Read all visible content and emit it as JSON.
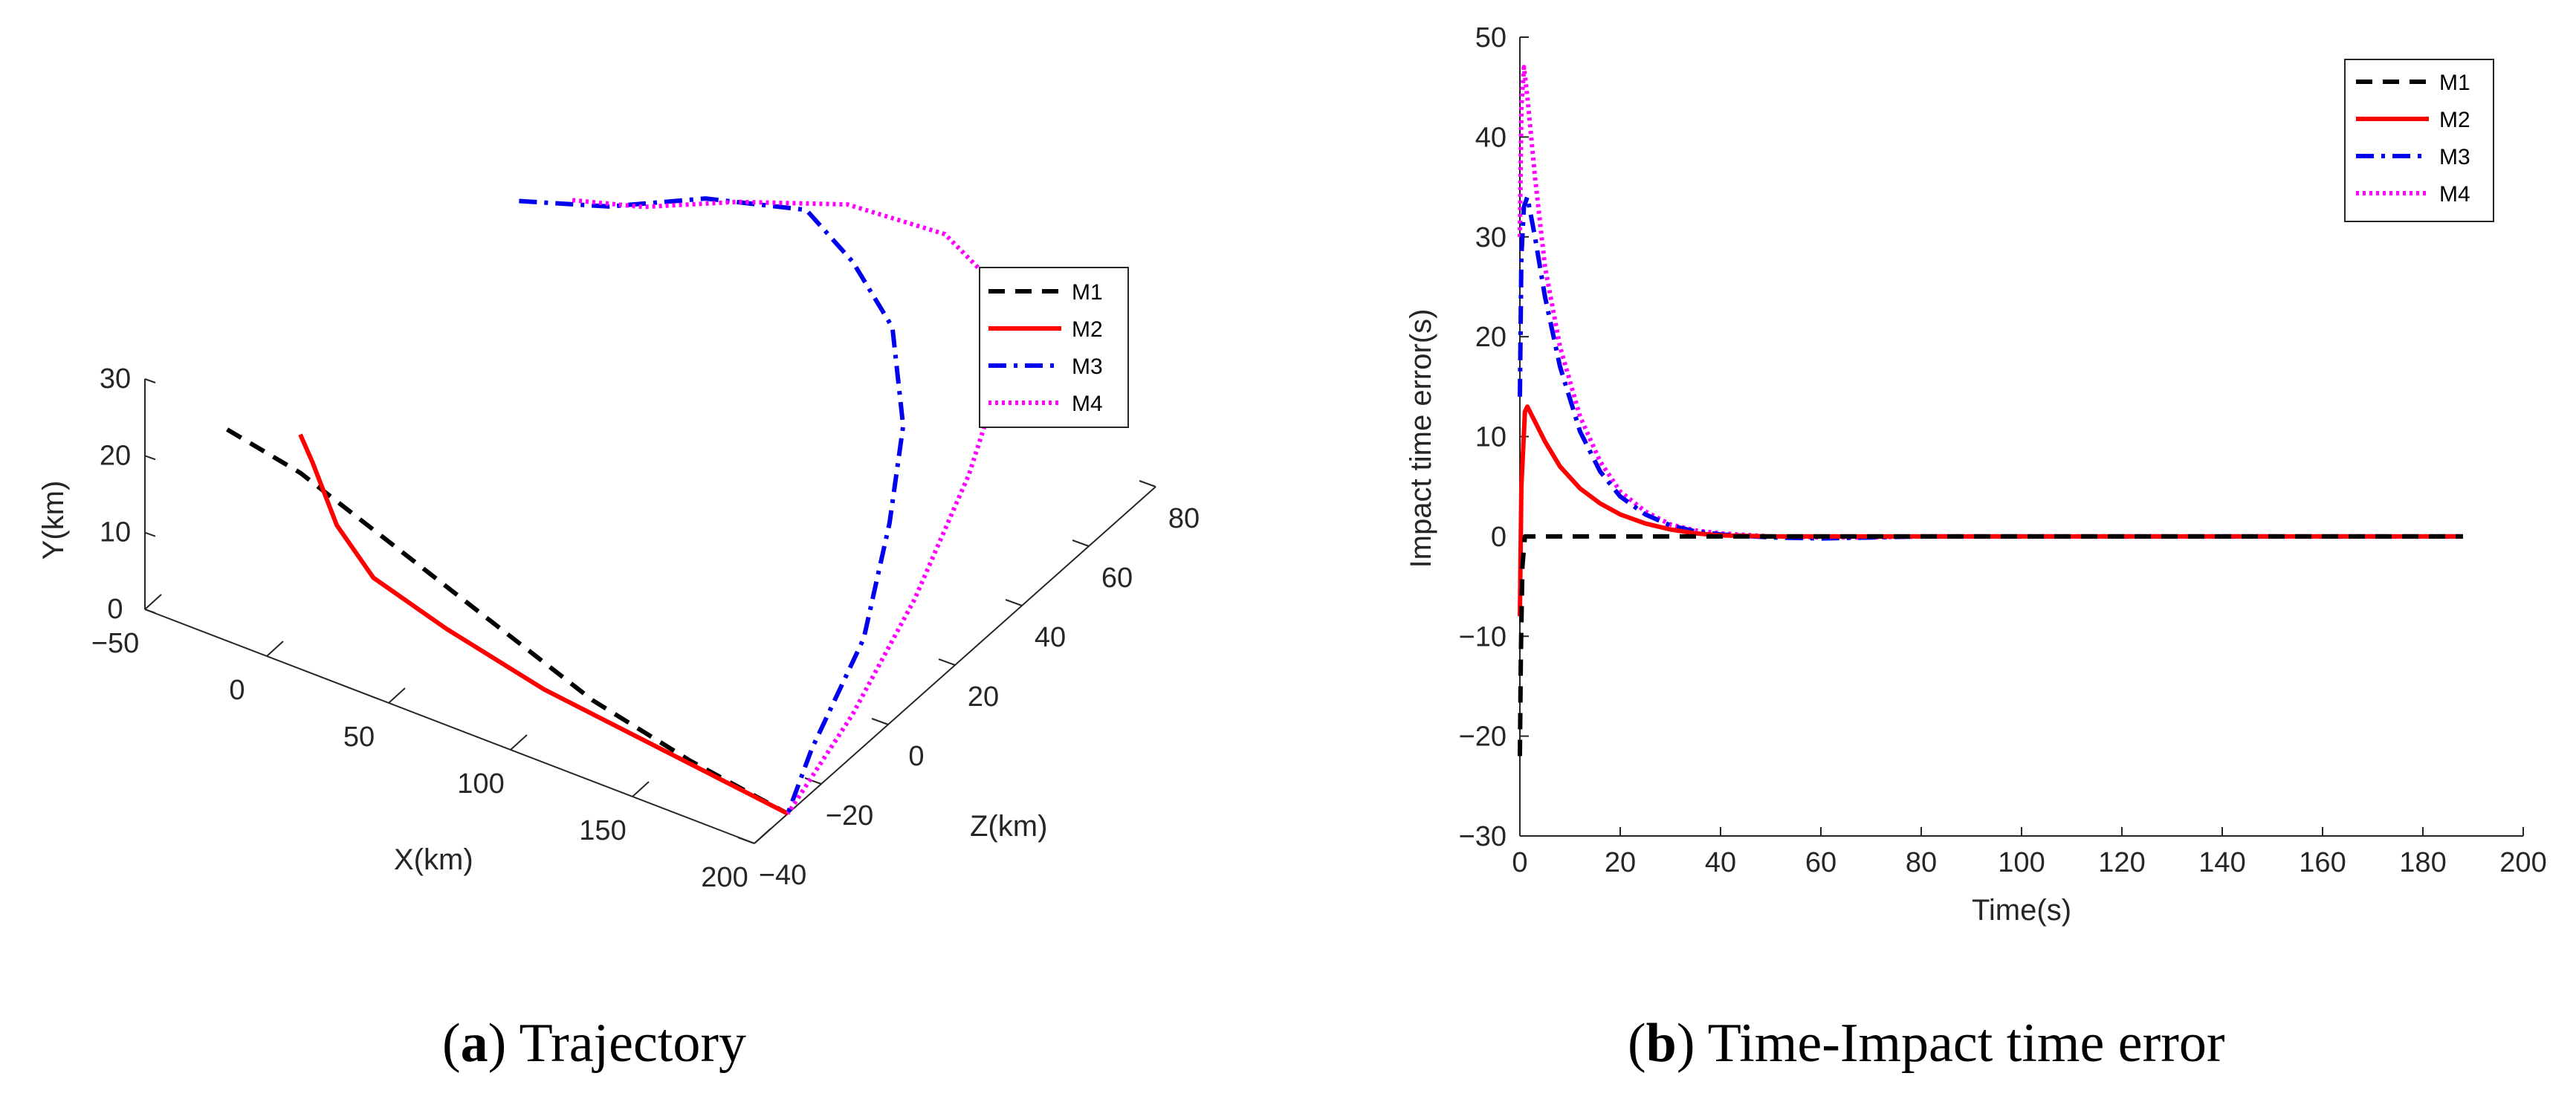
{
  "colors": {
    "M1": "#000000",
    "M2": "#ff0000",
    "M3": "#0000ee",
    "M4": "#ff00ff"
  },
  "chart_data": [
    {
      "type": "line3d",
      "caption_letter": "a",
      "caption_text": "Trajectory",
      "xlabel": "X(km)",
      "ylabel": "Y(km)",
      "zlabel": "Z(km)",
      "x_ticks": [
        "−50",
        "0",
        "50",
        "100",
        "150",
        "200"
      ],
      "y_ticks": [
        "0",
        "10",
        "20",
        "30"
      ],
      "z_ticks": [
        "−40",
        "−20",
        "0",
        "20",
        "40",
        "60",
        "80"
      ],
      "xlim": [
        -50,
        200
      ],
      "ylim": [
        0,
        30
      ],
      "zlim": [
        -40,
        80
      ],
      "legend_position": "right",
      "series": [
        {
          "name": "M1",
          "style": "dashed",
          "points": [
            [
              -30,
              22,
              -30
            ],
            [
              0,
              20,
              -30
            ],
            [
              40,
              15,
              -30
            ],
            [
              80,
              10,
              -30
            ],
            [
              120,
              5,
              -30
            ],
            [
              160,
              2,
              -30
            ],
            [
              200,
              0,
              -30
            ]
          ]
        },
        {
          "name": "M2",
          "style": "solid",
          "points": [
            [
              0,
              25,
              -30
            ],
            [
              5,
              22,
              -30
            ],
            [
              15,
              15,
              -30
            ],
            [
              30,
              10,
              -30
            ],
            [
              60,
              7,
              -30
            ],
            [
              100,
              4,
              -30
            ],
            [
              150,
              2,
              -30
            ],
            [
              200,
              0,
              -30
            ]
          ]
        },
        {
          "name": "M3",
          "style": "dashdot",
          "points": [
            [
              -20,
              22,
              50
            ],
            [
              10,
              23,
              55
            ],
            [
              40,
              25,
              62
            ],
            [
              80,
              28,
              63
            ],
            [
              110,
              28,
              55
            ],
            [
              140,
              27,
              45
            ],
            [
              165,
              23,
              30
            ],
            [
              180,
              18,
              15
            ],
            [
              190,
              10,
              0
            ],
            [
              196,
              4,
              -20
            ],
            [
              200,
              0,
              -30
            ]
          ]
        },
        {
          "name": "M4",
          "style": "dotted",
          "points": [
            [
              -5,
              22,
              55
            ],
            [
              20,
              23,
              58
            ],
            [
              50,
              25,
              64
            ],
            [
              90,
              28,
              68
            ],
            [
              130,
              29,
              68
            ],
            [
              160,
              28,
              62
            ],
            [
              180,
              26,
              50
            ],
            [
              192,
              20,
              30
            ],
            [
              197,
              12,
              10
            ],
            [
              199,
              5,
              -10
            ],
            [
              200,
              0,
              -30
            ]
          ]
        }
      ]
    },
    {
      "type": "line",
      "caption_letter": "b",
      "caption_text": "Time-Impact time error",
      "xlabel": "Time(s)",
      "ylabel": "Impact time error(s)",
      "xlim": [
        0,
        200
      ],
      "ylim": [
        -30,
        50
      ],
      "x_ticks": [
        "0",
        "20",
        "40",
        "60",
        "80",
        "100",
        "120",
        "140",
        "160",
        "180",
        "200"
      ],
      "y_ticks": [
        "−30",
        "−20",
        "−10",
        "0",
        "10",
        "20",
        "30",
        "40",
        "50"
      ],
      "legend_position": "top-right",
      "series": [
        {
          "name": "M1",
          "style": "dashed",
          "x": [
            0,
            0.2,
            0.5,
            1,
            2,
            5,
            10,
            20,
            40,
            80,
            120,
            160,
            188
          ],
          "y": [
            -22,
            -12,
            -3,
            0,
            0,
            0,
            0,
            0,
            0,
            0,
            0,
            0,
            0
          ]
        },
        {
          "name": "M2",
          "style": "solid",
          "x": [
            0,
            0.3,
            1,
            1.5,
            3,
            5,
            8,
            12,
            16,
            20,
            25,
            30,
            35,
            40,
            50,
            60,
            80,
            100,
            140,
            188
          ],
          "y": [
            -8,
            5,
            12.5,
            13,
            11.5,
            9.5,
            7,
            4.8,
            3.3,
            2.2,
            1.3,
            0.7,
            0.3,
            0.1,
            0,
            0,
            0,
            0,
            0,
            0
          ]
        },
        {
          "name": "M3",
          "style": "dashdot",
          "x": [
            0,
            0.3,
            0.8,
            1.5,
            3,
            5,
            8,
            12,
            16,
            20,
            25,
            30,
            35,
            40,
            50,
            60,
            70,
            80,
            100,
            140,
            188
          ],
          "y": [
            14,
            28,
            33,
            34,
            30,
            24,
            17,
            10.5,
            6.5,
            4,
            2.2,
            1.1,
            0.5,
            0.2,
            -0.1,
            -0.2,
            -0.1,
            0,
            0,
            0,
            0
          ]
        },
        {
          "name": "M4",
          "style": "dotted",
          "x": [
            0,
            0.3,
            0.8,
            1.5,
            3,
            5,
            8,
            12,
            16,
            20,
            25,
            30,
            35,
            40,
            50,
            60,
            70,
            80,
            100,
            140,
            188
          ],
          "y": [
            30,
            43,
            47,
            44,
            36,
            27,
            19,
            12,
            7.5,
            4.5,
            2.5,
            1.2,
            0.6,
            0.3,
            0,
            -0.1,
            -0.1,
            0,
            0,
            0,
            0
          ]
        }
      ]
    }
  ]
}
